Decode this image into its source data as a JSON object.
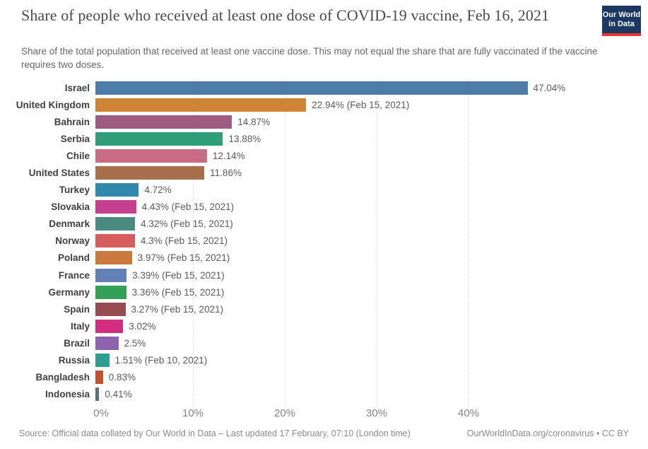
{
  "header": {
    "title": "Share of people who received at least one dose of COVID-19 vaccine, Feb 16, 2021",
    "subtitle": "Share of the total population that received at least one vaccine dose. This may not equal the share that are fully vaccinated if the vaccine requires two doses.",
    "logo": {
      "line1": "Our World",
      "line2": "in Data",
      "bg_color": "#1A3861",
      "accent_color": "#E5362D"
    }
  },
  "chart_data": {
    "type": "bar",
    "orientation": "horizontal",
    "title": "Share of people who received at least one dose of COVID-19 vaccine, Feb 16, 2021",
    "xlabel": "",
    "ylabel": "",
    "value_suffix": "%",
    "xlim": [
      0,
      47.04
    ],
    "x_ticks": [
      0,
      10,
      20,
      30,
      40
    ],
    "x_tick_labels": [
      "0%",
      "10%",
      "20%",
      "30%",
      "40%"
    ],
    "grid": true,
    "rows": [
      {
        "country": "Israel",
        "value": 47.04,
        "label": "47.04%",
        "color": "#4E7CA8"
      },
      {
        "country": "United Kingdom",
        "value": 22.94,
        "label": "22.94% (Feb 15, 2021)",
        "color": "#CF8335"
      },
      {
        "country": "Bahrain",
        "value": 14.87,
        "label": "14.87%",
        "color": "#9E5B80"
      },
      {
        "country": "Serbia",
        "value": 13.88,
        "label": "13.88%",
        "color": "#2F9E76"
      },
      {
        "country": "Chile",
        "value": 12.14,
        "label": "12.14%",
        "color": "#C96D87"
      },
      {
        "country": "United States",
        "value": 11.86,
        "label": "11.86%",
        "color": "#A96E4C"
      },
      {
        "country": "Turkey",
        "value": 4.72,
        "label": "4.72%",
        "color": "#3187AC"
      },
      {
        "country": "Slovakia",
        "value": 4.43,
        "label": "4.43% (Feb 15, 2021)",
        "color": "#C43F90"
      },
      {
        "country": "Denmark",
        "value": 4.32,
        "label": "4.32% (Feb 15, 2021)",
        "color": "#4A8A80"
      },
      {
        "country": "Norway",
        "value": 4.3,
        "label": "4.3% (Feb 15, 2021)",
        "color": "#D65C5E"
      },
      {
        "country": "Poland",
        "value": 3.97,
        "label": "3.97% (Feb 15, 2021)",
        "color": "#CA7A3C"
      },
      {
        "country": "France",
        "value": 3.39,
        "label": "3.39% (Feb 15, 2021)",
        "color": "#6380B4"
      },
      {
        "country": "Germany",
        "value": 3.36,
        "label": "3.36% (Feb 15, 2021)",
        "color": "#32A057"
      },
      {
        "country": "Spain",
        "value": 3.27,
        "label": "3.27% (Feb 15, 2021)",
        "color": "#964B50"
      },
      {
        "country": "Italy",
        "value": 3.02,
        "label": "3.02%",
        "color": "#D12E80"
      },
      {
        "country": "Brazil",
        "value": 2.5,
        "label": "2.5%",
        "color": "#8E63AC"
      },
      {
        "country": "Russia",
        "value": 1.51,
        "label": "1.51% (Feb 10, 2021)",
        "color": "#2F9E90"
      },
      {
        "country": "Bangladesh",
        "value": 0.83,
        "label": "0.83%",
        "color": "#C4512E"
      },
      {
        "country": "Indonesia",
        "value": 0.41,
        "label": "0.41%",
        "color": "#5F6E7E"
      }
    ]
  },
  "footer": {
    "source": "Source: Official data collated by Our World in Data – Last updated 17 February, 07:10 (London time)",
    "link": "OurWorldInData.org/coronavirus • CC BY"
  }
}
